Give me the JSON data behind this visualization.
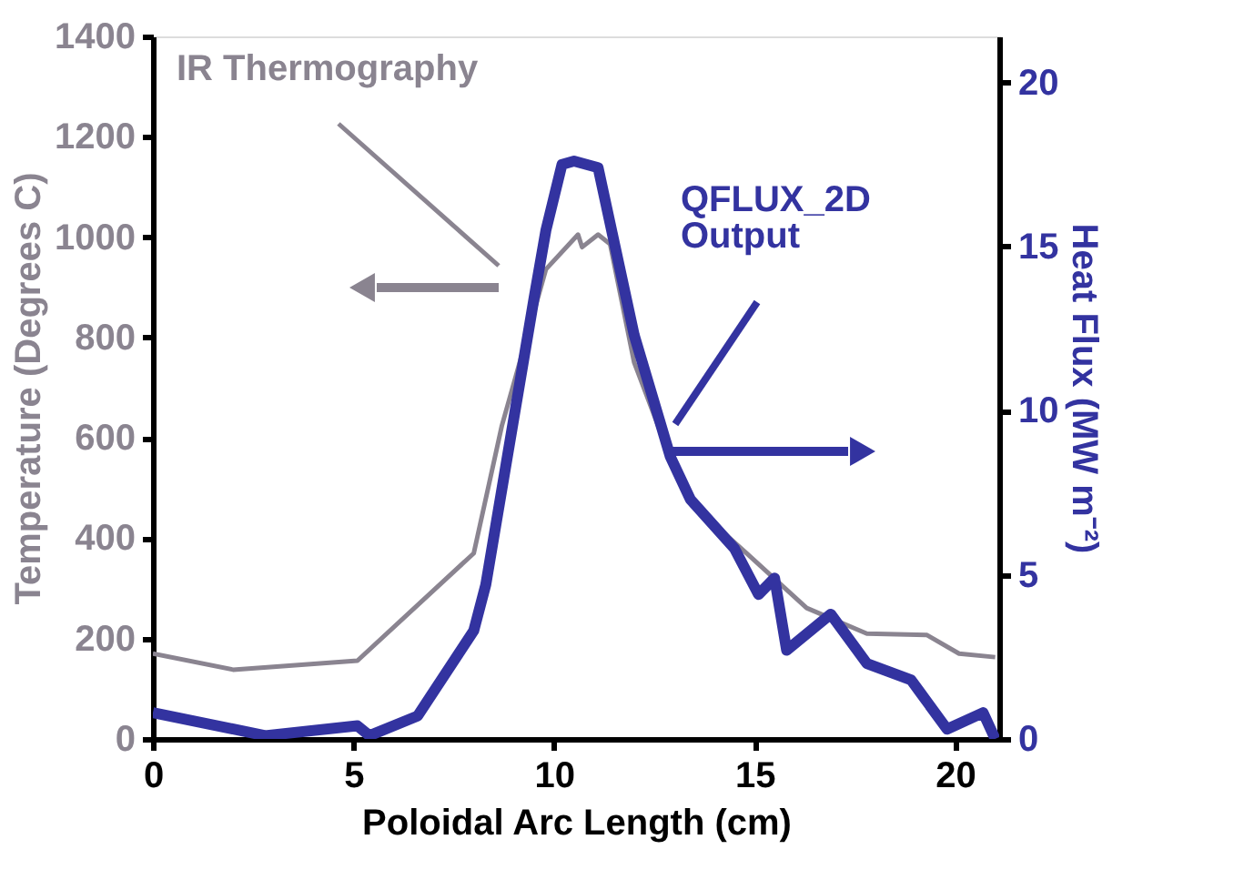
{
  "chart_data": {
    "type": "line",
    "xlabel": "Poloidal Arc Length (cm)",
    "ylabel": "Temperature (Degrees C)",
    "y2label": "Heat Flux (MW m⁻²)",
    "xlim": [
      0,
      21.1
    ],
    "xticks": [
      0,
      5,
      10,
      15,
      20
    ],
    "ylim": [
      0,
      1400
    ],
    "yticks": [
      0,
      200,
      400,
      600,
      800,
      1000,
      1200,
      1400
    ],
    "y2lim": [
      0,
      21.4
    ],
    "y2ticks": [
      0,
      5,
      10,
      15,
      20
    ],
    "grid": false,
    "legend": false,
    "marker": "none",
    "line_style": "solid",
    "series": [
      {
        "name": "IR Thermography",
        "color": "#8a8490",
        "x": [
          0,
          2.0,
          5.1,
          8.0,
          8.7,
          9.8,
          10.6,
          10.7,
          11.1,
          11.4,
          12.0,
          12.9,
          13.4,
          14.8,
          16.3,
          17.8,
          19.3,
          20.1,
          21.0
        ],
        "values": [
          170,
          138,
          156,
          370,
          624,
          936,
          1005,
          980,
          1005,
          986,
          750,
          560,
          470,
          370,
          261,
          210,
          207,
          170,
          163
        ]
      },
      {
        "name": "QFLUX_2D Output",
        "color": "#3333a0",
        "axis": "y2",
        "x": [
          0,
          2.8,
          5.1,
          5.4,
          6.6,
          8.0,
          8.3,
          9.5,
          9.8,
          10.2,
          10.5,
          11.1,
          12.0,
          12.9,
          13.4,
          14.5,
          15.1,
          15.5,
          15.8,
          16.9,
          17.8,
          18.9,
          19.8,
          20.7,
          21.0
        ],
        "values": [
          0.8,
          0.1,
          0.4,
          0.1,
          0.7,
          3.3,
          4.7,
          13.4,
          15.5,
          17.5,
          17.6,
          17.4,
          12.3,
          8.6,
          7.3,
          5.8,
          4.4,
          4.9,
          2.7,
          3.8,
          2.3,
          1.8,
          0.3,
          0.8,
          0.0
        ]
      }
    ]
  }
}
